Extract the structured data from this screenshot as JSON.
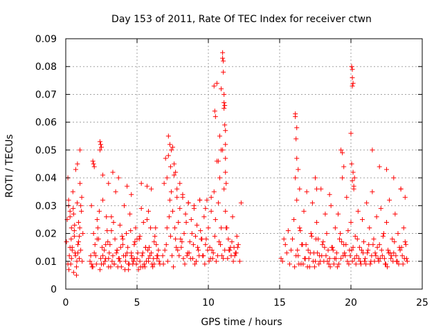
{
  "chart_data": {
    "type": "scatter",
    "title": "Day 153 of 2011, Rate Of TEC Index for receiver ctwn",
    "xlabel": "GPS time / hours",
    "ylabel": "ROTI / TECUs",
    "xlim": [
      0,
      25
    ],
    "ylim": [
      0,
      0.09
    ],
    "x_ticks": [
      0,
      5,
      10,
      15,
      20,
      25
    ],
    "x_tick_labels": [
      "0",
      "5",
      "10",
      "15",
      "20",
      "25"
    ],
    "y_ticks": [
      0,
      0.01,
      0.02,
      0.03,
      0.04,
      0.05,
      0.06,
      0.07,
      0.08,
      0.09
    ],
    "y_tick_labels": [
      "0",
      "0.01",
      "0.02",
      "0.03",
      "0.04",
      "0.05",
      "0.06",
      "0.07",
      "0.08",
      "0.09"
    ],
    "grid": true,
    "marker": "+",
    "color": "#ff0000",
    "series": [
      {
        "name": "ROTI",
        "x": [
          0.05,
          0.15,
          0.2,
          0.25,
          0.3,
          0.35,
          0.4,
          0.45,
          0.5,
          0.55,
          0.6,
          0.65,
          0.7,
          0.75,
          0.8,
          0.85,
          0.9,
          0.95,
          1.0,
          1.05,
          1.1,
          1.15,
          1.2,
          0.1,
          0.22,
          0.38,
          0.52,
          0.68,
          0.82,
          0.98,
          1.12,
          0.15,
          0.3,
          0.45,
          0.6,
          0.75,
          0.9,
          1.05,
          0.2,
          0.4,
          0.62,
          0.85,
          1.0,
          0.3,
          0.55,
          0.78,
          0.95,
          1.7,
          1.8,
          1.9,
          2.0,
          2.1,
          2.2,
          2.3,
          2.4,
          2.5,
          2.6,
          2.7,
          2.8,
          2.9,
          3.0,
          3.1,
          3.2,
          3.3,
          3.4,
          3.5,
          3.6,
          3.7,
          3.8,
          3.9,
          4.0,
          4.1,
          4.2,
          4.3,
          4.4,
          4.5,
          4.6,
          4.7,
          4.8,
          4.9,
          5.0,
          5.1,
          5.2,
          5.3,
          5.4,
          5.5,
          5.6,
          5.7,
          5.8,
          5.9,
          6.0,
          6.1,
          6.2,
          6.3,
          6.4,
          6.5,
          6.6,
          1.75,
          1.95,
          2.15,
          2.35,
          2.55,
          2.75,
          2.95,
          3.15,
          3.35,
          3.55,
          3.75,
          3.95,
          4.15,
          4.35,
          4.55,
          4.75,
          4.95,
          5.15,
          5.35,
          5.55,
          5.75,
          5.95,
          6.15,
          6.35,
          6.55,
          1.85,
          2.05,
          2.25,
          2.45,
          2.65,
          2.85,
          3.05,
          3.25,
          3.45,
          3.65,
          3.85,
          4.05,
          4.25,
          4.45,
          4.65,
          4.85,
          5.05,
          5.25,
          5.45,
          5.65,
          5.85,
          6.05,
          6.25,
          6.45,
          1.8,
          2.0,
          2.2,
          2.4,
          2.6,
          2.8,
          3.0,
          3.2,
          3.4,
          3.6,
          3.8,
          4.0,
          4.2,
          4.4,
          4.6,
          4.8,
          5.0,
          5.2,
          5.4,
          5.6,
          5.8,
          6.0,
          6.2,
          6.4,
          2.4,
          2.45,
          2.5,
          1.9,
          1.95,
          2.6,
          3.0,
          3.3,
          3.7,
          4.3,
          4.6,
          5.3,
          5.7,
          5.8,
          6.8,
          6.9,
          7.0,
          7.1,
          7.2,
          7.3,
          7.4,
          7.5,
          7.6,
          7.7,
          7.8,
          7.9,
          8.0,
          8.1,
          8.2,
          8.3,
          8.4,
          8.5,
          8.6,
          8.7,
          8.8,
          8.9,
          9.0,
          9.1,
          9.2,
          9.3,
          9.4,
          9.5,
          9.6,
          9.7,
          9.8,
          9.9,
          10.0,
          10.1,
          10.2,
          10.3,
          10.4,
          10.5,
          10.6,
          10.7,
          10.8,
          10.9,
          11.0,
          11.1,
          11.2,
          11.3,
          11.4,
          11.5,
          11.6,
          11.7,
          11.8,
          11.9,
          12.0,
          12.1,
          12.2,
          12.3,
          6.85,
          7.05,
          7.25,
          7.45,
          7.65,
          7.85,
          8.05,
          8.25,
          8.45,
          8.65,
          8.85,
          9.05,
          9.25,
          9.45,
          9.65,
          9.85,
          10.05,
          10.25,
          10.45,
          10.65,
          10.85,
          11.05,
          11.25,
          11.45,
          11.65,
          11.85,
          12.05,
          6.95,
          7.15,
          7.35,
          7.55,
          7.75,
          7.95,
          8.15,
          8.35,
          8.55,
          8.75,
          8.95,
          9.15,
          9.35,
          9.55,
          9.75,
          9.95,
          10.15,
          10.35,
          10.55,
          10.75,
          10.95,
          11.15,
          11.35,
          11.55,
          11.75,
          11.95,
          7.1,
          7.2,
          7.3,
          7.35,
          7.4,
          7.5,
          7.6,
          7.7,
          7.8,
          8.0,
          8.2,
          8.6,
          9.0,
          9.4,
          9.8,
          10.2,
          10.5,
          10.6,
          10.7,
          10.8,
          10.9,
          11.0,
          11.0,
          11.05,
          11.1,
          11.1,
          11.15,
          11.2,
          11.2,
          11.2,
          11.25,
          10.4,
          10.45,
          10.9,
          11.05,
          11.1,
          11.15,
          11.2,
          15.1,
          15.2,
          15.3,
          15.4,
          15.5,
          15.6,
          15.7,
          15.8,
          15.9,
          16.0,
          16.1,
          16.2,
          16.3,
          16.4,
          16.5,
          16.6,
          16.7,
          16.8,
          16.9,
          17.0,
          17.1,
          17.2,
          17.3,
          17.4,
          17.5,
          17.6,
          17.7,
          17.8,
          17.9,
          18.0,
          18.1,
          18.2,
          18.3,
          18.4,
          18.5,
          18.6,
          18.7,
          18.8,
          18.9,
          19.0,
          19.1,
          19.2,
          19.3,
          19.4,
          19.5,
          19.6,
          19.7,
          19.8,
          19.9,
          20.0,
          20.1,
          20.2,
          20.3,
          20.4,
          20.5,
          20.6,
          20.7,
          20.8,
          20.9,
          21.0,
          21.1,
          21.2,
          21.3,
          21.4,
          21.5,
          21.6,
          21.7,
          21.8,
          21.9,
          22.0,
          22.1,
          22.2,
          22.3,
          22.4,
          22.5,
          22.6,
          22.7,
          22.8,
          22.9,
          23.0,
          23.1,
          23.2,
          23.3,
          23.4,
          23.5,
          23.6,
          23.7,
          23.8,
          23.9,
          16.05,
          16.25,
          16.45,
          16.65,
          16.85,
          17.05,
          17.25,
          17.45,
          17.65,
          17.85,
          18.05,
          18.25,
          18.45,
          18.65,
          18.85,
          19.05,
          19.25,
          19.45,
          19.65,
          19.85,
          20.05,
          20.25,
          20.45,
          20.65,
          20.85,
          21.05,
          21.25,
          21.45,
          21.65,
          21.85,
          22.05,
          22.25,
          22.45,
          22.65,
          22.85,
          23.05,
          23.25,
          23.45,
          23.65,
          23.85,
          16.15,
          16.35,
          16.55,
          16.75,
          16.95,
          17.15,
          17.35,
          17.55,
          17.75,
          17.95,
          18.15,
          18.35,
          18.55,
          18.75,
          18.95,
          19.15,
          19.35,
          19.55,
          19.75,
          19.95,
          20.15,
          20.35,
          20.55,
          20.75,
          20.95,
          21.15,
          21.35,
          21.55,
          21.75,
          21.95,
          22.15,
          22.35,
          22.55,
          22.75,
          22.95,
          23.15,
          23.35,
          23.55,
          23.75,
          23.95,
          16.1,
          16.15,
          16.2,
          16.3,
          16.4,
          17.5,
          17.6,
          18.5,
          19.3,
          19.4,
          19.5,
          20.0,
          20.05,
          20.1,
          20.15,
          20.2,
          20.25,
          21.5,
          22.0,
          22.5,
          23.0,
          23.5,
          23.8,
          16.1,
          16.2,
          20.05,
          20.1,
          20.15,
          20.1,
          20.1
        ],
        "y": [
          0.017,
          0.04,
          0.032,
          0.012,
          0.028,
          0.009,
          0.022,
          0.015,
          0.035,
          0.006,
          0.019,
          0.013,
          0.043,
          0.008,
          0.031,
          0.016,
          0.024,
          0.011,
          0.038,
          0.014,
          0.028,
          0.01,
          0.02,
          0.025,
          0.007,
          0.018,
          0.029,
          0.012,
          0.045,
          0.022,
          0.033,
          0.009,
          0.026,
          0.014,
          0.021,
          0.005,
          0.017,
          0.03,
          0.03,
          0.011,
          0.023,
          0.013,
          0.05,
          0.015,
          0.027,
          0.01,
          0.019,
          0.01,
          0.03,
          0.008,
          0.044,
          0.012,
          0.025,
          0.018,
          0.05,
          0.009,
          0.032,
          0.014,
          0.011,
          0.021,
          0.008,
          0.016,
          0.026,
          0.012,
          0.009,
          0.035,
          0.014,
          0.011,
          0.023,
          0.008,
          0.018,
          0.03,
          0.01,
          0.013,
          0.007,
          0.027,
          0.012,
          0.009,
          0.016,
          0.022,
          0.011,
          0.007,
          0.019,
          0.029,
          0.013,
          0.009,
          0.015,
          0.025,
          0.01,
          0.012,
          0.036,
          0.008,
          0.017,
          0.022,
          0.011,
          0.014,
          0.009,
          0.012,
          0.02,
          0.009,
          0.028,
          0.015,
          0.01,
          0.017,
          0.008,
          0.024,
          0.013,
          0.011,
          0.019,
          0.007,
          0.015,
          0.021,
          0.01,
          0.009,
          0.018,
          0.012,
          0.008,
          0.014,
          0.022,
          0.011,
          0.016,
          0.01,
          0.008,
          0.016,
          0.022,
          0.011,
          0.009,
          0.026,
          0.013,
          0.01,
          0.018,
          0.008,
          0.015,
          0.012,
          0.02,
          0.009,
          0.011,
          0.017,
          0.013,
          0.008,
          0.024,
          0.01,
          0.015,
          0.009,
          0.019,
          0.012,
          0.009,
          0.013,
          0.018,
          0.007,
          0.012,
          0.016,
          0.011,
          0.021,
          0.009,
          0.014,
          0.01,
          0.016,
          0.012,
          0.009,
          0.013,
          0.011,
          0.018,
          0.01,
          0.008,
          0.015,
          0.011,
          0.013,
          0.009,
          0.012,
          0.053,
          0.052,
          0.051,
          0.046,
          0.045,
          0.041,
          0.038,
          0.042,
          0.04,
          0.037,
          0.034,
          0.038,
          0.037,
          0.028,
          0.012,
          0.038,
          0.047,
          0.022,
          0.055,
          0.032,
          0.05,
          0.028,
          0.041,
          0.018,
          0.036,
          0.024,
          0.029,
          0.015,
          0.033,
          0.02,
          0.027,
          0.012,
          0.031,
          0.017,
          0.025,
          0.011,
          0.029,
          0.019,
          0.023,
          0.014,
          0.032,
          0.018,
          0.012,
          0.026,
          0.016,
          0.032,
          0.022,
          0.015,
          0.028,
          0.011,
          0.035,
          0.025,
          0.046,
          0.031,
          0.04,
          0.022,
          0.05,
          0.036,
          0.028,
          0.022,
          0.018,
          0.014,
          0.012,
          0.026,
          0.015,
          0.013,
          0.019,
          0.016,
          0.01,
          0.031,
          0.009,
          0.016,
          0.026,
          0.012,
          0.022,
          0.014,
          0.018,
          0.011,
          0.024,
          0.013,
          0.02,
          0.009,
          0.015,
          0.021,
          0.012,
          0.018,
          0.01,
          0.014,
          0.019,
          0.012,
          0.016,
          0.011,
          0.022,
          0.014,
          0.017,
          0.012,
          0.015,
          0.014,
          0.01,
          0.019,
          0.008,
          0.015,
          0.012,
          0.017,
          0.009,
          0.013,
          0.011,
          0.016,
          0.01,
          0.012,
          0.018,
          0.009,
          0.014,
          0.011,
          0.013,
          0.01,
          0.017,
          0.012,
          0.014,
          0.011,
          0.015,
          0.01,
          0.013,
          0.04,
          0.048,
          0.052,
          0.044,
          0.035,
          0.051,
          0.045,
          0.042,
          0.033,
          0.038,
          0.034,
          0.031,
          0.03,
          0.032,
          0.029,
          0.033,
          0.062,
          0.074,
          0.046,
          0.055,
          0.072,
          0.085,
          0.083,
          0.078,
          0.067,
          0.065,
          0.059,
          0.052,
          0.047,
          0.042,
          0.038,
          0.073,
          0.064,
          0.05,
          0.082,
          0.07,
          0.066,
          0.057,
          0.011,
          0.01,
          0.018,
          0.016,
          0.013,
          0.021,
          0.009,
          0.014,
          0.018,
          0.025,
          0.04,
          0.032,
          0.012,
          0.022,
          0.009,
          0.016,
          0.028,
          0.011,
          0.035,
          0.014,
          0.008,
          0.02,
          0.031,
          0.013,
          0.01,
          0.024,
          0.018,
          0.012,
          0.036,
          0.016,
          0.01,
          0.027,
          0.02,
          0.014,
          0.011,
          0.03,
          0.015,
          0.009,
          0.022,
          0.013,
          0.027,
          0.018,
          0.011,
          0.04,
          0.016,
          0.012,
          0.033,
          0.021,
          0.014,
          0.024,
          0.01,
          0.037,
          0.019,
          0.012,
          0.028,
          0.015,
          0.009,
          0.025,
          0.017,
          0.011,
          0.031,
          0.014,
          0.022,
          0.01,
          0.035,
          0.018,
          0.013,
          0.026,
          0.011,
          0.016,
          0.029,
          0.012,
          0.02,
          0.009,
          0.024,
          0.014,
          0.032,
          0.011,
          0.018,
          0.013,
          0.027,
          0.01,
          0.02,
          0.015,
          0.036,
          0.012,
          0.022,
          0.017,
          0.011,
          0.008,
          0.014,
          0.021,
          0.009,
          0.016,
          0.011,
          0.019,
          0.008,
          0.013,
          0.01,
          0.017,
          0.012,
          0.009,
          0.015,
          0.011,
          0.008,
          0.02,
          0.012,
          0.016,
          0.009,
          0.014,
          0.011,
          0.018,
          0.01,
          0.013,
          0.009,
          0.016,
          0.012,
          0.01,
          0.015,
          0.011,
          0.019,
          0.009,
          0.013,
          0.012,
          0.017,
          0.01,
          0.014,
          0.009,
          0.016,
          0.012,
          0.009,
          0.016,
          0.011,
          0.008,
          0.013,
          0.01,
          0.018,
          0.009,
          0.012,
          0.015,
          0.01,
          0.008,
          0.014,
          0.011,
          0.009,
          0.017,
          0.013,
          0.01,
          0.012,
          0.015,
          0.009,
          0.011,
          0.014,
          0.01,
          0.013,
          0.009,
          0.016,
          0.012,
          0.01,
          0.014,
          0.011,
          0.008,
          0.013,
          0.01,
          0.012,
          0.009,
          0.015,
          0.011,
          0.01,
          0.063,
          0.054,
          0.047,
          0.043,
          0.036,
          0.04,
          0.036,
          0.034,
          0.05,
          0.049,
          0.044,
          0.056,
          0.045,
          0.039,
          0.042,
          0.036,
          0.04,
          0.05,
          0.044,
          0.043,
          0.04,
          0.036,
          0.033,
          0.062,
          0.058,
          0.08,
          0.076,
          0.074,
          0.079,
          0.073
        ]
      }
    ]
  }
}
